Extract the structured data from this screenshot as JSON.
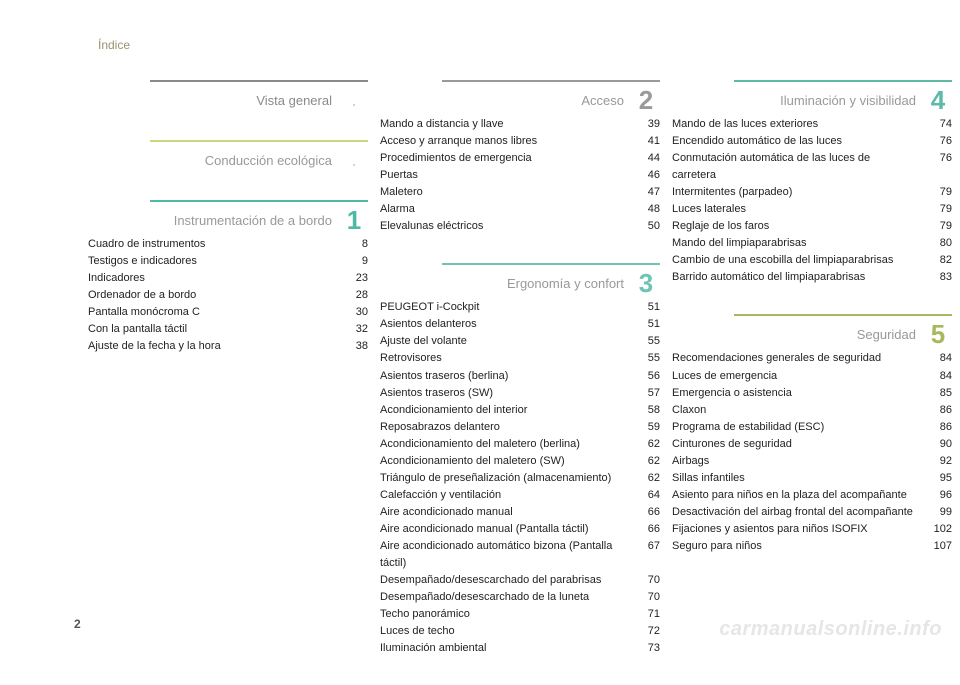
{
  "header": "Índice",
  "page_number": "2",
  "watermark": "carmanualsonline.info",
  "columns": [
    [
      {
        "title": "Vista general",
        "number": null,
        "bullet": ".",
        "bar_color": "#8a8a8a",
        "title_color": "#8a8a8a",
        "entries": []
      },
      {
        "title": "Conducción ecológica",
        "number": null,
        "bullet": ".",
        "bar_color": "#c7d97a",
        "title_color": "#999999",
        "entries": []
      },
      {
        "title": "Instrumentación de a bordo",
        "number": "1",
        "bar_color": "#4fb9a8",
        "num_color": "#4fb9a8",
        "title_color": "#999999",
        "entries": [
          {
            "label": "Cuadro de instrumentos",
            "page": "8"
          },
          {
            "label": "Testigos e indicadores",
            "page": "9"
          },
          {
            "label": "Indicadores",
            "page": "23"
          },
          {
            "label": "Ordenador de a bordo",
            "page": "28"
          },
          {
            "label": "Pantalla monócroma C",
            "page": "30"
          },
          {
            "label": "Con la pantalla táctil",
            "page": "32"
          },
          {
            "label": "Ajuste de la fecha y la hora",
            "page": "38"
          }
        ]
      }
    ],
    [
      {
        "title": "Acceso",
        "number": "2",
        "bar_color": "#9a9a9a",
        "num_color": "#9a9a9a",
        "title_color": "#999999",
        "entries": [
          {
            "label": "Mando a distancia y llave",
            "page": "39"
          },
          {
            "label": "Acceso y arranque manos libres",
            "page": "41"
          },
          {
            "label": "Procedimientos de emergencia",
            "page": "44"
          },
          {
            "label": "Puertas",
            "page": "46"
          },
          {
            "label": "Maletero",
            "page": "47"
          },
          {
            "label": "Alarma",
            "page": "48"
          },
          {
            "label": "Elevalunas eléctricos",
            "page": "50"
          }
        ]
      },
      {
        "title": "Ergonomía y confort",
        "number": "3",
        "bar_color": "#6fc3b4",
        "num_color": "#6fc3b4",
        "title_color": "#999999",
        "entries": [
          {
            "label": "PEUGEOT i-Cockpit",
            "page": "51"
          },
          {
            "label": "Asientos delanteros",
            "page": "51"
          },
          {
            "label": "Ajuste del volante",
            "page": "55"
          },
          {
            "label": "Retrovisores",
            "page": "55"
          },
          {
            "label": "Asientos traseros (berlina)",
            "page": "56"
          },
          {
            "label": "Asientos traseros (SW)",
            "page": "57"
          },
          {
            "label": "Acondicionamiento del interior",
            "page": "58"
          },
          {
            "label": "Reposabrazos delantero",
            "page": "59"
          },
          {
            "label": "Acondicionamiento del maletero (berlina)",
            "page": "62"
          },
          {
            "label": "Acondicionamiento del maletero (SW)",
            "page": "62"
          },
          {
            "label": "Triángulo de preseñalización (almacenamiento)",
            "page": "62"
          },
          {
            "label": "Calefacción y ventilación",
            "page": "64"
          },
          {
            "label": "Aire acondicionado manual",
            "page": "66"
          },
          {
            "label": "Aire acondicionado manual (Pantalla táctil)",
            "page": "66"
          },
          {
            "label": "Aire acondicionado automático bizona (Pantalla táctil)",
            "page": "67"
          },
          {
            "label": "Desempañado/desescarchado del parabrisas",
            "page": "70"
          },
          {
            "label": "Desempañado/desescarchado de la luneta",
            "page": "70"
          },
          {
            "label": "Techo panorámico",
            "page": "71"
          },
          {
            "label": "Luces de techo",
            "page": "72"
          },
          {
            "label": "Iluminación ambiental",
            "page": "73"
          }
        ]
      }
    ],
    [
      {
        "title": "Iluminación y visibilidad",
        "number": "4",
        "bar_color": "#5fb9a8",
        "num_color": "#5fb9a8",
        "title_color": "#999999",
        "entries": [
          {
            "label": "Mando de las luces exteriores",
            "page": "74"
          },
          {
            "label": "Encendido automático de las luces",
            "page": "76"
          },
          {
            "label": "Conmutación automática de las luces de carretera",
            "page": "76"
          },
          {
            "label": "Intermitentes (parpadeo)",
            "page": "79"
          },
          {
            "label": "Luces laterales",
            "page": "79"
          },
          {
            "label": "Reglaje de los faros",
            "page": "79"
          },
          {
            "label": "Mando del limpiaparabrisas",
            "page": "80"
          },
          {
            "label": "Cambio de una escobilla del limpiaparabrisas",
            "page": "82"
          },
          {
            "label": "Barrido automático del limpiaparabrisas",
            "page": "83"
          }
        ]
      },
      {
        "title": "Seguridad",
        "number": "5",
        "bar_color": "#a7b95d",
        "num_color": "#a7b95d",
        "title_color": "#999999",
        "entries": [
          {
            "label": "Recomendaciones generales de seguridad",
            "page": "84"
          },
          {
            "label": "Luces de emergencia",
            "page": "84"
          },
          {
            "label": "Emergencia o asistencia",
            "page": "85"
          },
          {
            "label": "Claxon",
            "page": "86"
          },
          {
            "label": "Programa de estabilidad (ESC)",
            "page": "86"
          },
          {
            "label": "Cinturones de seguridad",
            "page": "90"
          },
          {
            "label": "Airbags",
            "page": "92"
          },
          {
            "label": "Sillas infantiles",
            "page": "95"
          },
          {
            "label": "Asiento para niños en la plaza del acompañante",
            "page": "96"
          },
          {
            "label": "Desactivación del airbag frontal del acompañante",
            "page": "99"
          },
          {
            "label": "Fijaciones y asientos para niños ISOFIX",
            "page": "102"
          },
          {
            "label": "Seguro para niños",
            "page": "107"
          }
        ]
      }
    ]
  ]
}
